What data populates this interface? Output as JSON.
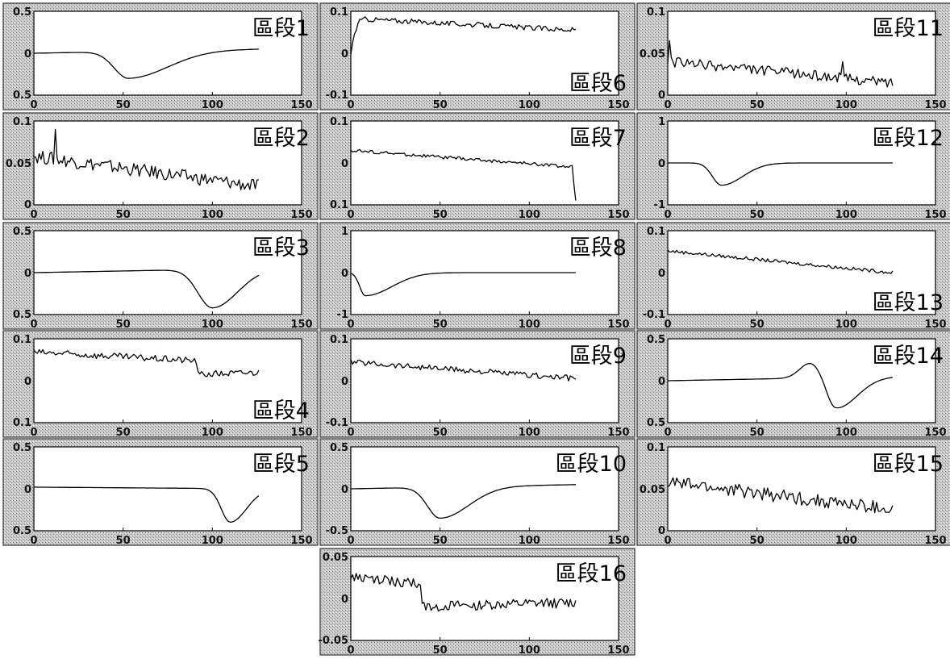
{
  "chart_data": [
    {
      "type": "line",
      "annotation": "區段1",
      "xticks": [
        "0",
        "50",
        "100",
        "150"
      ],
      "yticks": [
        "0.5",
        "0",
        "0.5"
      ],
      "xlim": [
        0,
        150
      ],
      "ylim": [
        -0.5,
        0.5
      ],
      "shape": {
        "base": 0.0,
        "start": 0.0,
        "end": 0.05,
        "noise": 0.0,
        "dips": [
          {
            "center": 53,
            "depth": -0.32,
            "left_width": 8,
            "right_width": 22
          }
        ]
      }
    },
    {
      "type": "line",
      "annotation": "區段2",
      "xticks": [
        "0",
        "50",
        "100",
        "150"
      ],
      "yticks": [
        "0.1",
        "0.05",
        "0"
      ],
      "xlim": [
        0,
        150
      ],
      "ylim": [
        0,
        0.1
      ],
      "shape": {
        "base": 0.0,
        "start": 0.058,
        "end": 0.022,
        "noise": 0.008,
        "spikes": [
          {
            "x": 12,
            "v": 0.09
          }
        ]
      }
    },
    {
      "type": "line",
      "annotation": "區段3",
      "xticks": [
        "0",
        "50",
        "100",
        "150"
      ],
      "yticks": [
        "0.5",
        "0",
        "0.5"
      ],
      "xlim": [
        0,
        150
      ],
      "ylim": [
        -0.5,
        0.5
      ],
      "shape": {
        "base": 0.0,
        "start": 0.0,
        "end": 0.05,
        "noise": 0.0,
        "dips": [
          {
            "center": 100,
            "depth": -0.46,
            "left_width": 8,
            "right_width": 14
          }
        ]
      }
    },
    {
      "type": "line",
      "annotation": "區段4",
      "xticks": [
        "0",
        "50",
        "100",
        "150"
      ],
      "yticks": [
        "0.1",
        "0",
        "0.1"
      ],
      "xlim": [
        0,
        150
      ],
      "ylim": [
        -0.1,
        0.1
      ],
      "shape": {
        "base": 0.0,
        "start": 0.068,
        "end": 0.04,
        "noise": 0.008,
        "steps": [
          {
            "x": 92,
            "v": 0.015
          }
        ],
        "post": 0.02
      }
    },
    {
      "type": "line",
      "annotation": "區段5",
      "xticks": [
        "0",
        "50",
        "100",
        "150"
      ],
      "yticks": [
        "0.5",
        "0",
        "0.5"
      ],
      "xlim": [
        0,
        150
      ],
      "ylim": [
        -0.5,
        0.5
      ],
      "shape": {
        "base": 0.0,
        "start": 0.02,
        "end": 0.0,
        "noise": 0.0,
        "dips": [
          {
            "center": 110,
            "depth": -0.4,
            "left_width": 5,
            "right_width": 9
          }
        ]
      }
    },
    {
      "type": "line",
      "annotation": "區段6",
      "xticks": [
        "0",
        "50",
        "100",
        "150"
      ],
      "yticks": [
        "0.1",
        "0",
        "-0.1"
      ],
      "xlim": [
        0,
        150
      ],
      "ylim": [
        -0.1,
        0.1
      ],
      "shape": {
        "base": 0.0,
        "start": 0.0,
        "end": 0.055,
        "noise": 0.006,
        "rise": {
          "to": 0.078,
          "width": 6
        },
        "peak": 0.082
      }
    },
    {
      "type": "line",
      "annotation": "區段7",
      "xticks": [
        "0",
        "50",
        "100",
        "150"
      ],
      "yticks": [
        "0.1",
        "0",
        "0.1"
      ],
      "xlim": [
        0,
        150
      ],
      "ylim": [
        -0.1,
        0.1
      ],
      "shape": {
        "base": 0.0,
        "start": 0.03,
        "end": -0.01,
        "noise": 0.004,
        "drop": {
          "at": 124,
          "to": -0.09
        }
      }
    },
    {
      "type": "line",
      "annotation": "區段8",
      "xticks": [
        "0",
        "50",
        "100",
        "150"
      ],
      "yticks": [
        "1",
        "0",
        "-1"
      ],
      "xlim": [
        0,
        150
      ],
      "ylim": [
        -1,
        1
      ],
      "shape": {
        "base": 0.0,
        "start": 0.0,
        "end": 0.0,
        "noise": 0.0,
        "dips": [
          {
            "center": 8,
            "depth": -0.55,
            "left_width": 3,
            "right_width": 15
          }
        ]
      }
    },
    {
      "type": "line",
      "annotation": "區段9",
      "xticks": [
        "0",
        "50",
        "100",
        "150"
      ],
      "yticks": [
        "0.1",
        "0",
        "-0.1"
      ],
      "xlim": [
        0,
        150
      ],
      "ylim": [
        -0.1,
        0.1
      ],
      "shape": {
        "base": 0.0,
        "start": 0.045,
        "end": 0.005,
        "noise": 0.007
      }
    },
    {
      "type": "line",
      "annotation": "區段10",
      "xticks": [
        "0",
        "50",
        "100",
        "150"
      ],
      "yticks": [
        "0.5",
        "0",
        "-0.5"
      ],
      "xlim": [
        0,
        150
      ],
      "ylim": [
        -0.5,
        0.5
      ],
      "shape": {
        "base": 0.0,
        "start": 0.0,
        "end": 0.05,
        "noise": 0.0,
        "dips": [
          {
            "center": 50,
            "depth": -0.37,
            "left_width": 7,
            "right_width": 16
          }
        ]
      }
    },
    {
      "type": "line",
      "annotation": "區段11",
      "xticks": [
        "0",
        "50",
        "100",
        "150"
      ],
      "yticks": [
        "0.1",
        "0.05",
        "0"
      ],
      "xlim": [
        0,
        150
      ],
      "ylim": [
        0,
        0.1
      ],
      "shape": {
        "base": 0.0,
        "start": 0.04,
        "end": 0.015,
        "noise": 0.006,
        "spikes": [
          {
            "x": 1,
            "v": 0.065
          },
          {
            "x": 98,
            "v": 0.04
          }
        ]
      }
    },
    {
      "type": "line",
      "annotation": "區段12",
      "xticks": [
        "0",
        "50",
        "100",
        "150"
      ],
      "yticks": [
        "1",
        "0",
        "-1"
      ],
      "xlim": [
        0,
        150
      ],
      "ylim": [
        -1,
        1
      ],
      "shape": {
        "base": 0.0,
        "start": 0.0,
        "end": 0.0,
        "noise": 0.0,
        "dips": [
          {
            "center": 30,
            "depth": -0.53,
            "left_width": 5,
            "right_width": 12
          }
        ]
      }
    },
    {
      "type": "line",
      "annotation": "區段13",
      "xticks": [
        "0",
        "50",
        "100",
        "150"
      ],
      "yticks": [
        "0.1",
        "0",
        "-0.1"
      ],
      "xlim": [
        0,
        150
      ],
      "ylim": [
        -0.1,
        0.1
      ],
      "shape": {
        "base": 0.0,
        "start": 0.052,
        "end": 0.0,
        "noise": 0.004
      }
    },
    {
      "type": "line",
      "annotation": "區段14",
      "xticks": [
        "0",
        "50",
        "100",
        "150"
      ],
      "yticks": [
        "0.5",
        "0",
        "0.5"
      ],
      "xlim": [
        0,
        150
      ],
      "ylim": [
        -0.5,
        0.5
      ],
      "shape": {
        "base": 0.0,
        "start": 0.0,
        "end": 0.05,
        "noise": 0.0,
        "bump": {
          "center": 80,
          "height": 0.18,
          "width": 6
        },
        "dips": [
          {
            "center": 94,
            "depth": -0.37,
            "left_width": 5,
            "right_width": 12
          }
        ]
      }
    },
    {
      "type": "line",
      "annotation": "區段15",
      "xticks": [
        "0",
        "50",
        "100",
        "150"
      ],
      "yticks": [
        "0.1",
        "0.05",
        "0"
      ],
      "xlim": [
        0,
        150
      ],
      "ylim": [
        0,
        0.1
      ],
      "shape": {
        "base": 0.0,
        "start": 0.058,
        "end": 0.025,
        "noise": 0.008
      }
    },
    {
      "type": "line",
      "annotation": "區段16",
      "xticks": [
        "0",
        "50",
        "100",
        "150"
      ],
      "yticks": [
        "0.05",
        "0",
        "-0.05"
      ],
      "xlim": [
        0,
        150
      ],
      "ylim": [
        -0.05,
        0.05
      ],
      "shape": {
        "base": 0.0,
        "start": 0.025,
        "end": 0.0,
        "noise": 0.006,
        "steps": [
          {
            "x": 40,
            "v": -0.01
          }
        ],
        "post": -0.005
      }
    }
  ]
}
